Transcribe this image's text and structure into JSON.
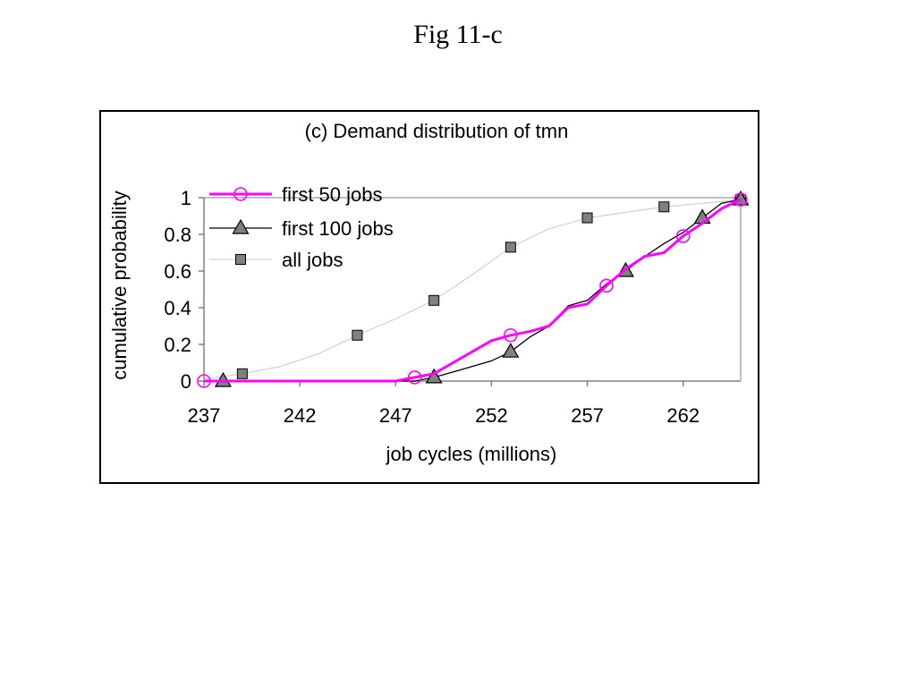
{
  "page": {
    "title": "Fig 11-c"
  },
  "chart_data": {
    "type": "line",
    "title": "(c) Demand distribution of tmn",
    "xlabel": "job cycles (millions)",
    "ylabel": "cumulative probability",
    "xlim": [
      237,
      265
    ],
    "ylim": [
      0,
      1
    ],
    "xticks": [
      237,
      242,
      247,
      252,
      257,
      262
    ],
    "yticks": [
      0,
      0.2,
      0.4,
      0.6,
      0.8,
      1
    ],
    "xtick_labels": [
      "237",
      "242",
      "247",
      "252",
      "257",
      "262"
    ],
    "ytick_labels": [
      "0",
      "0.2",
      "0.4",
      "0.6",
      "0.8",
      "1"
    ],
    "grid": false,
    "legend_position": "top-left",
    "series": [
      {
        "name": "first 50 jobs",
        "color": "#ff00ff",
        "marker": "circle",
        "line": [
          [
            237,
            0
          ],
          [
            247,
            0
          ],
          [
            248,
            0.02
          ],
          [
            249,
            0.04
          ],
          [
            250,
            0.1
          ],
          [
            251,
            0.16
          ],
          [
            252,
            0.22
          ],
          [
            253,
            0.25
          ],
          [
            254,
            0.27
          ],
          [
            255,
            0.3
          ],
          [
            256,
            0.4
          ],
          [
            257,
            0.42
          ],
          [
            258,
            0.52
          ],
          [
            259,
            0.61
          ],
          [
            260,
            0.68
          ],
          [
            261,
            0.7
          ],
          [
            262,
            0.79
          ],
          [
            263,
            0.86
          ],
          [
            264,
            0.94
          ],
          [
            265,
            0.99
          ]
        ],
        "markers": [
          [
            237,
            0
          ],
          [
            248,
            0.02
          ],
          [
            253,
            0.25
          ],
          [
            258,
            0.52
          ],
          [
            262,
            0.79
          ],
          [
            265,
            0.99
          ]
        ]
      },
      {
        "name": "first 100 jobs",
        "color": "#000000",
        "marker": "triangle",
        "line": [
          [
            237,
            0
          ],
          [
            247,
            0
          ],
          [
            248,
            0
          ],
          [
            249,
            0.02
          ],
          [
            250,
            0.05
          ],
          [
            251,
            0.08
          ],
          [
            252,
            0.11
          ],
          [
            253,
            0.16
          ],
          [
            254,
            0.24
          ],
          [
            255,
            0.3
          ],
          [
            256,
            0.41
          ],
          [
            257,
            0.44
          ],
          [
            258,
            0.53
          ],
          [
            259,
            0.6
          ],
          [
            260,
            0.68
          ],
          [
            261,
            0.75
          ],
          [
            262,
            0.81
          ],
          [
            263,
            0.89
          ],
          [
            264,
            0.97
          ],
          [
            265,
            0.99
          ]
        ],
        "markers": [
          [
            238,
            0
          ],
          [
            249,
            0.02
          ],
          [
            253,
            0.16
          ],
          [
            259,
            0.6
          ],
          [
            263,
            0.89
          ],
          [
            265,
            0.99
          ]
        ]
      },
      {
        "name": "all jobs",
        "color": "#c8c8c8",
        "marker": "square",
        "line": [
          [
            237,
            0.01
          ],
          [
            239,
            0.04
          ],
          [
            241,
            0.08
          ],
          [
            243,
            0.15
          ],
          [
            245,
            0.25
          ],
          [
            247,
            0.34
          ],
          [
            249,
            0.44
          ],
          [
            251,
            0.58
          ],
          [
            253,
            0.73
          ],
          [
            255,
            0.83
          ],
          [
            257,
            0.89
          ],
          [
            259,
            0.92
          ],
          [
            261,
            0.95
          ],
          [
            263,
            0.97
          ],
          [
            265,
            0.99
          ]
        ],
        "markers": [
          [
            239,
            0.04
          ],
          [
            245,
            0.25
          ],
          [
            249,
            0.44
          ],
          [
            253,
            0.73
          ],
          [
            257,
            0.89
          ],
          [
            261,
            0.95
          ],
          [
            265,
            0.99
          ]
        ]
      }
    ]
  }
}
